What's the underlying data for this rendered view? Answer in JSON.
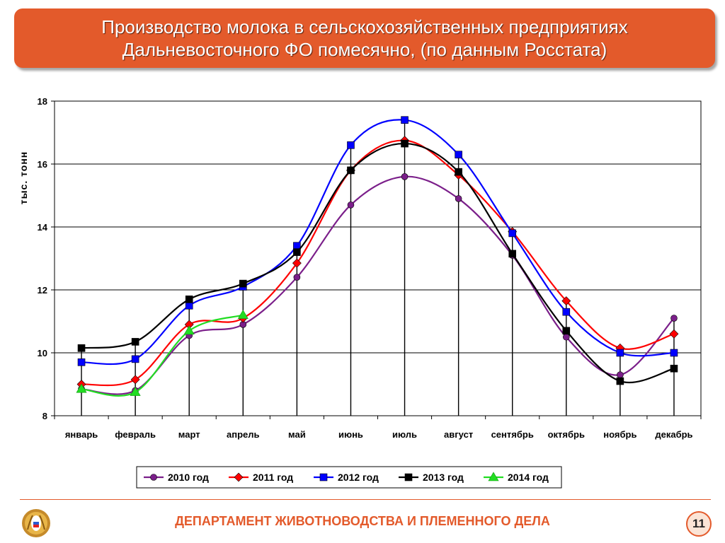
{
  "header": {
    "title_line1": "Производство молока в сельскохозяйственных предприятиях",
    "title_line2": "Дальневосточного ФО помесячно, (по данным Росстата)"
  },
  "footer": {
    "department": "ДЕПАРТАМЕНТ ЖИВОТНОВОДСТВА И ПЛЕМЕННОГО ДЕЛА",
    "page_number": "11",
    "logo_icon": "wheat-emblem-icon"
  },
  "chart_data": {
    "type": "line",
    "title": "Производство молока в сельскохозяйственных предприятиях Дальневосточного ФО помесячно, (по данным Росстата)",
    "ylabel": "тыс. тонн",
    "xlabel": "",
    "ylim": [
      8,
      18
    ],
    "yticks": [
      8,
      10,
      12,
      14,
      16,
      18
    ],
    "grid": "horizontal",
    "smooth": true,
    "legend_position": "bottom",
    "categories": [
      "январь",
      "февраль",
      "март",
      "апрель",
      "май",
      "июнь",
      "июль",
      "август",
      "сентябрь",
      "октябрь",
      "ноябрь",
      "декабрь"
    ],
    "series": [
      {
        "name": "2010 год",
        "color": "#7b1f8a",
        "marker": "circle",
        "values": [
          8.85,
          8.8,
          10.55,
          10.9,
          12.4,
          14.7,
          15.6,
          14.9,
          13.1,
          10.5,
          9.3,
          11.1
        ]
      },
      {
        "name": "2011 год",
        "color": "#ff0000",
        "marker": "diamond",
        "values": [
          9.0,
          9.15,
          10.9,
          11.1,
          12.85,
          15.8,
          16.75,
          15.65,
          13.85,
          11.65,
          10.15,
          10.6
        ]
      },
      {
        "name": "2012 год",
        "color": "#0000ff",
        "marker": "square",
        "values": [
          9.7,
          9.8,
          11.5,
          12.1,
          13.4,
          16.6,
          17.4,
          16.3,
          13.8,
          11.3,
          10.0,
          10.0
        ]
      },
      {
        "name": "2013 год",
        "color": "#000000",
        "marker": "square",
        "values": [
          10.15,
          10.35,
          11.7,
          12.2,
          13.2,
          15.8,
          16.65,
          15.75,
          13.15,
          10.7,
          9.1,
          9.5
        ]
      },
      {
        "name": "2014 год",
        "color": "#22dd22",
        "marker": "triangle",
        "values": [
          8.85,
          8.75,
          10.7,
          11.2,
          null,
          null,
          null,
          null,
          null,
          null,
          null,
          null
        ]
      }
    ]
  }
}
